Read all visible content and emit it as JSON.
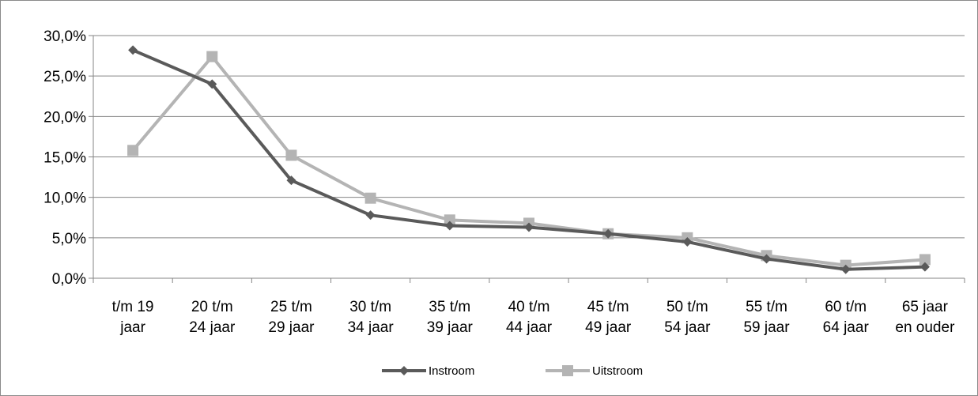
{
  "chart_data": {
    "type": "line",
    "categories": [
      [
        "t/m 19",
        "jaar"
      ],
      [
        "20 t/m",
        "24 jaar"
      ],
      [
        "25 t/m",
        "29 jaar"
      ],
      [
        "30 t/m",
        "34 jaar"
      ],
      [
        "35 t/m",
        "39 jaar"
      ],
      [
        "40 t/m",
        "44 jaar"
      ],
      [
        "45 t/m",
        "49 jaar"
      ],
      [
        "50 t/m",
        "54 jaar"
      ],
      [
        "55 t/m",
        "59 jaar"
      ],
      [
        "60 t/m",
        "64 jaar"
      ],
      [
        "65 jaar",
        "en ouder"
      ]
    ],
    "y_ticks": [
      "0,0%",
      "5,0%",
      "10,0%",
      "15,0%",
      "20,0%",
      "25,0%",
      "30,0%"
    ],
    "ylim": [
      0,
      30
    ],
    "grid": true,
    "legend_position": "bottom",
    "series": [
      {
        "name": "Instroom",
        "color": "#5a5a5a",
        "marker": "diamond",
        "values": [
          28.2,
          24.0,
          12.1,
          7.8,
          6.5,
          6.3,
          5.5,
          4.5,
          2.4,
          1.1,
          1.4
        ]
      },
      {
        "name": "Uitstroom",
        "color": "#b4b4b4",
        "marker": "square",
        "values": [
          15.8,
          27.4,
          15.2,
          9.9,
          7.2,
          6.8,
          5.5,
          5.0,
          2.8,
          1.6,
          2.3
        ]
      }
    ]
  }
}
